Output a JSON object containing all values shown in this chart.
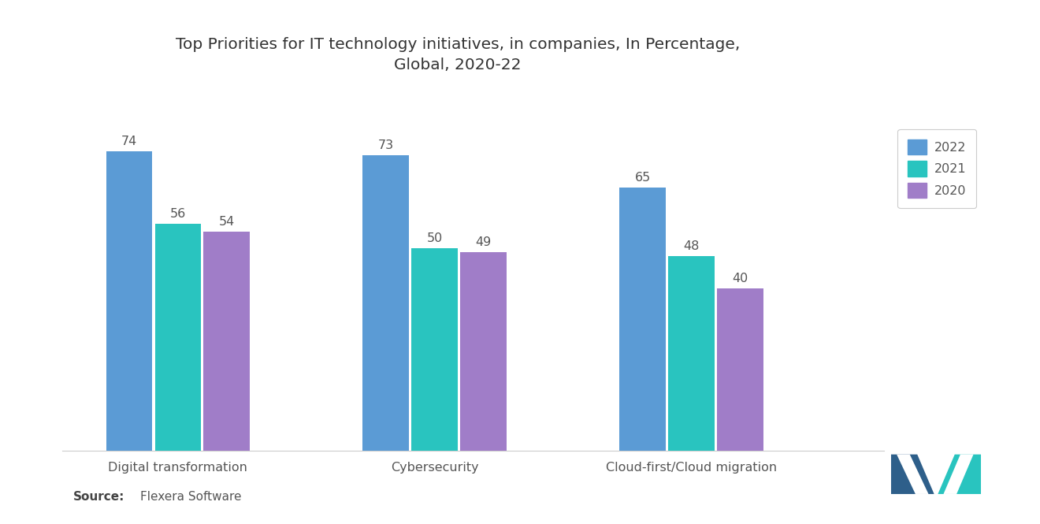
{
  "title_line1": "Top Priorities for IT technology initiatives, in companies, In Percentage,",
  "title_line2": "Global, 2020-22",
  "categories": [
    "Digital transformation",
    "Cybersecurity",
    "Cloud-first/Cloud migration"
  ],
  "series": {
    "2022": [
      74,
      73,
      65
    ],
    "2021": [
      56,
      50,
      48
    ],
    "2020": [
      54,
      49,
      40
    ]
  },
  "colors": {
    "2022": "#5B9BD5",
    "2021": "#29C4BF",
    "2020": "#A07DC8"
  },
  "bar_width": 0.18,
  "ylim": [
    0,
    88
  ],
  "background_color": "#FFFFFF",
  "title_fontsize": 14.5,
  "label_fontsize": 11.5,
  "value_fontsize": 11.5,
  "legend_fontsize": 11.5,
  "source_fontsize": 11,
  "text_color": "#555555",
  "source_bold_color": "#444444"
}
